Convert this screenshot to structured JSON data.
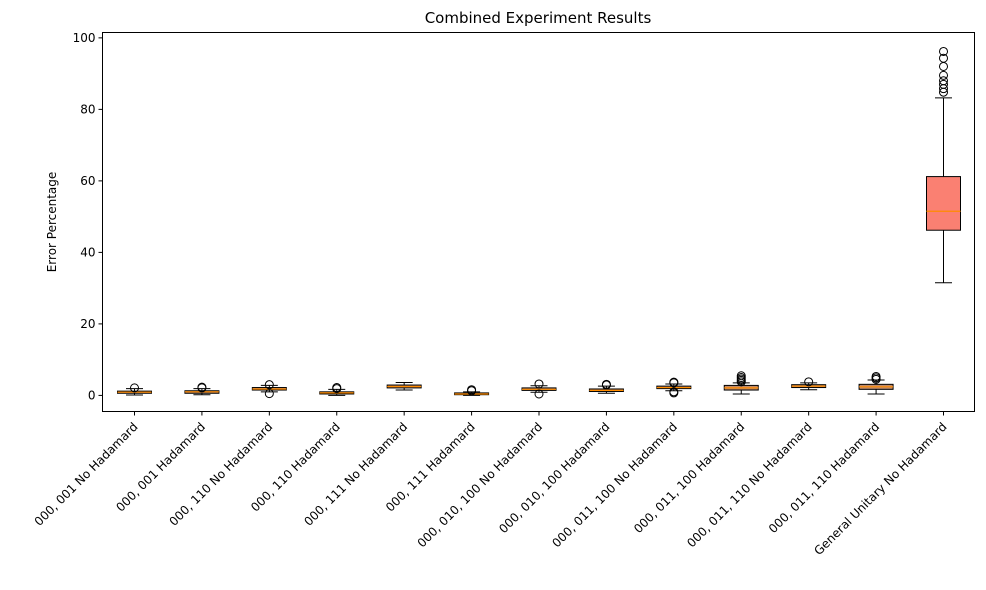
{
  "chart_data": {
    "type": "box",
    "title": "Combined Experiment Results",
    "xlabel": "",
    "ylabel": "Error Percentage",
    "ylim": [
      -4.5,
      101.5
    ],
    "yticks": [
      0,
      20,
      40,
      60,
      80,
      100
    ],
    "grid": false,
    "colors": {
      "default_box": "#c08a6a",
      "highlight_box": "#fa8072",
      "median": "#ff8c00",
      "outline": "#000000"
    },
    "categories": [
      "000, 001 No Hadamard",
      "000, 001 Hadamard",
      "000, 110 No Hadamard",
      "000, 110 Hadamard",
      "000, 111 No Hadamard",
      "000, 111 Hadamard",
      "000, 010, 100 No Hadamard",
      "000, 010, 100 Hadamard",
      "000, 011, 100 No Hadamard",
      "000, 011, 100 Hadamard",
      "000, 011, 110 No Hadamard",
      "000, 011, 110 Hadamard",
      "General Unitary No Hadamard"
    ],
    "boxes": [
      {
        "whislo": 0.1,
        "q1": 0.6,
        "med": 0.9,
        "q3": 1.2,
        "whishi": 1.9,
        "fliers": [
          2.1
        ],
        "highlight": false
      },
      {
        "whislo": 0.2,
        "q1": 0.6,
        "med": 1.0,
        "q3": 1.3,
        "whishi": 1.9,
        "fliers": [
          2.1,
          2.3
        ],
        "highlight": false
      },
      {
        "whislo": 1.0,
        "q1": 1.5,
        "med": 1.8,
        "q3": 2.2,
        "whishi": 2.8,
        "fliers": [
          0.5,
          3.0
        ],
        "highlight": false
      },
      {
        "whislo": 0.0,
        "q1": 0.4,
        "med": 0.7,
        "q3": 1.0,
        "whishi": 1.7,
        "fliers": [
          1.9,
          2.2
        ],
        "highlight": false
      },
      {
        "whislo": 1.5,
        "q1": 2.1,
        "med": 2.5,
        "q3": 2.9,
        "whishi": 3.6,
        "fliers": [],
        "highlight": false
      },
      {
        "whislo": 0.0,
        "q1": 0.2,
        "med": 0.4,
        "q3": 0.7,
        "whishi": 1.0,
        "fliers": [
          1.3,
          1.6
        ],
        "highlight": false
      },
      {
        "whislo": 0.9,
        "q1": 1.4,
        "med": 1.7,
        "q3": 2.1,
        "whishi": 2.7,
        "fliers": [
          0.4,
          3.2
        ],
        "highlight": false
      },
      {
        "whislo": 0.6,
        "q1": 1.1,
        "med": 1.4,
        "q3": 1.8,
        "whishi": 2.6,
        "fliers": [
          2.9,
          3.1
        ],
        "highlight": false
      },
      {
        "whislo": 1.3,
        "q1": 1.9,
        "med": 2.2,
        "q3": 2.6,
        "whishi": 3.2,
        "fliers": [
          0.7,
          1.0,
          3.5,
          3.7
        ],
        "highlight": false
      },
      {
        "whislo": 0.4,
        "q1": 1.5,
        "med": 2.1,
        "q3": 2.8,
        "whishi": 3.5,
        "fliers": [
          3.8,
          4.2,
          4.6,
          5.0,
          5.5
        ],
        "highlight": false
      },
      {
        "whislo": 1.6,
        "q1": 2.2,
        "med": 2.6,
        "q3": 3.0,
        "whishi": 3.5,
        "fliers": [
          3.8
        ],
        "highlight": false
      },
      {
        "whislo": 0.4,
        "q1": 1.7,
        "med": 2.4,
        "q3": 3.1,
        "whishi": 4.3,
        "fliers": [
          4.5,
          4.9,
          5.3
        ],
        "highlight": false
      },
      {
        "whislo": 31.5,
        "q1": 46.2,
        "med": 51.5,
        "q3": 61.2,
        "whishi": 83.2,
        "fliers": [
          84.8,
          85.8,
          87.0,
          88.0,
          89.5,
          92.0,
          94.3,
          96.2
        ],
        "highlight": true
      }
    ]
  }
}
